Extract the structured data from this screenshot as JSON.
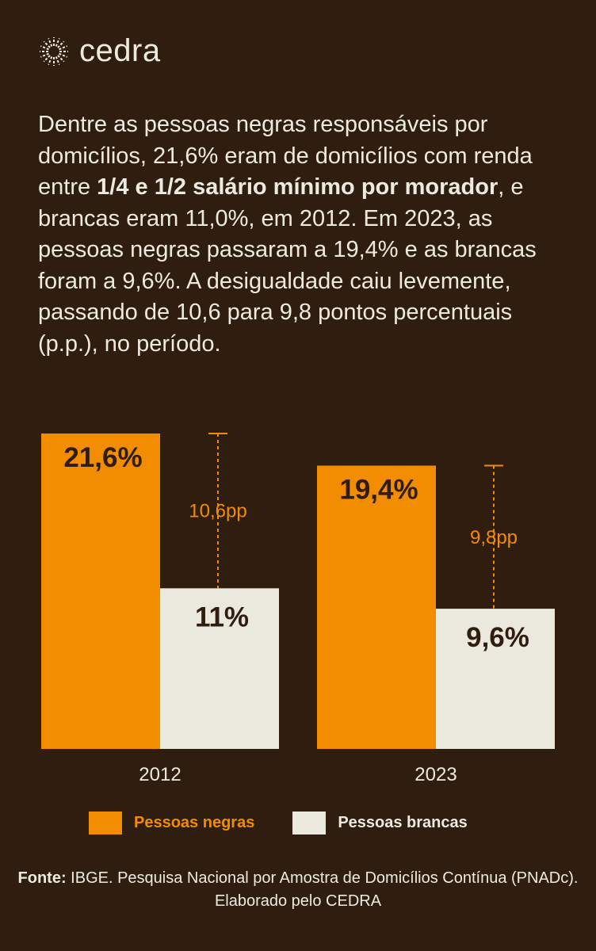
{
  "brand": {
    "name": "cedra"
  },
  "intro": {
    "part1": "Dentre as pessoas negras responsáveis por domicílios, 21,6% eram de domicílios com renda entre ",
    "bold1": "1/4 e 1/2 salário mínimo por morador",
    "part2": ", e brancas eram 11,0%, em 2012. Em 2023, as pessoas negras passaram a 19,4% e as brancas foram a 9,6%. A desigualdade caiu levemente, passando de 10,6 para 9,8 pontos percentuais (p.p.), no período."
  },
  "chart_data": {
    "type": "bar",
    "categories": [
      "2012",
      "2023"
    ],
    "series": [
      {
        "name": "Pessoas negras",
        "values": [
          21.6,
          19.4
        ],
        "labels": [
          "21,6%",
          "19,4%"
        ],
        "color": "#f28c00"
      },
      {
        "name": "Pessoas brancas",
        "values": [
          11.0,
          9.6
        ],
        "labels": [
          "11%",
          "9,6%"
        ],
        "color": "#ebe8de"
      }
    ],
    "gaps": [
      {
        "value": 10.6,
        "label": "10,6pp"
      },
      {
        "value": 9.8,
        "label": "9,8pp"
      }
    ],
    "ylim": [
      0,
      21.6
    ],
    "grid": false,
    "legend_position": "bottom"
  },
  "source": {
    "label": "Fonte:",
    "text": " IBGE. Pesquisa Nacional por Amostra de Domicílios Contínua (PNADc). Elaborado pelo CEDRA"
  },
  "colors": {
    "background": "#2f1e10",
    "accent": "#f28c00",
    "light": "#ebe8de",
    "text": "#efeae0",
    "dark_label": "#2f1e10"
  },
  "icons": {
    "logo": "sunburst-icon"
  }
}
